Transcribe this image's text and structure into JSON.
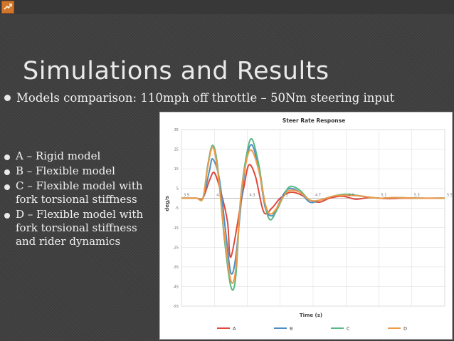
{
  "slide": {
    "title": "Simulations and Results",
    "subtitle": "Models comparison: 110mph off throttle – 50Nm steering input",
    "models": [
      {
        "text": "A – Rigid model"
      },
      {
        "text": "B – Flexible model"
      },
      {
        "text": "C – Flexible model with fork torsional stiffness"
      },
      {
        "text": "D – Flexible model with fork torsional stiffness and rider dynamics"
      }
    ]
  },
  "colors": {
    "A": "#e0473a",
    "B": "#4d8fc4",
    "C": "#58b782",
    "D": "#ef9a47"
  },
  "chart_data": {
    "type": "line",
    "title": "Steer Rate Response",
    "xlabel": "Time (s)",
    "ylabel": "deg/s",
    "xlim": [
      3.9,
      5.5
    ],
    "ylim": [
      -55,
      35
    ],
    "x_ticks": [
      "3.9",
      "4.1",
      "4.3",
      "4.5",
      "4.7",
      "4.9",
      "5.1",
      "5.3",
      "5.5"
    ],
    "y_ticks": [
      "35",
      "25",
      "15",
      "5",
      "-5",
      "-15",
      "-25",
      "-35",
      "-45",
      "-55"
    ],
    "grid": true,
    "legend_position": "bottom",
    "series": [
      {
        "name": "A",
        "x": [
          3.9,
          3.99,
          4.03,
          4.07,
          4.1,
          4.14,
          4.18,
          4.2,
          4.26,
          4.28,
          4.31,
          4.35,
          4.4,
          4.45,
          4.5,
          4.56,
          4.62,
          4.68,
          4.74,
          4.8,
          4.88,
          4.96,
          5.04,
          5.14,
          5.24,
          5.34,
          5.5
        ],
        "y": [
          0,
          0,
          0,
          9,
          13,
          3,
          -12,
          -30,
          -3,
          6,
          17,
          11,
          -7,
          -5,
          0,
          3,
          2,
          -1,
          -2,
          0,
          1,
          -0.5,
          0.3,
          -0.2,
          0,
          0,
          0
        ]
      },
      {
        "name": "B",
        "x": [
          3.9,
          3.99,
          4.03,
          4.07,
          4.09,
          4.13,
          4.17,
          4.2,
          4.23,
          4.27,
          4.3,
          4.33,
          4.37,
          4.41,
          4.45,
          4.48,
          4.52,
          4.56,
          4.62,
          4.68,
          4.74,
          4.82,
          4.9,
          5.0,
          5.1,
          5.2,
          5.35,
          5.5
        ],
        "y": [
          0,
          0,
          0,
          14,
          20,
          10,
          -18,
          -38,
          -30,
          4,
          22,
          27,
          15,
          -5,
          -9,
          -5,
          2,
          5,
          3,
          -2,
          -1,
          1,
          2,
          1,
          0,
          0.3,
          0,
          0
        ]
      },
      {
        "name": "C",
        "x": [
          3.9,
          3.99,
          4.03,
          4.06,
          4.09,
          4.12,
          4.16,
          4.2,
          4.23,
          4.26,
          4.3,
          4.33,
          4.37,
          4.41,
          4.44,
          4.48,
          4.52,
          4.56,
          4.62,
          4.68,
          4.74,
          4.82,
          4.9,
          5.0,
          5.1,
          5.2,
          5.35,
          5.5
        ],
        "y": [
          0,
          0,
          0,
          17,
          27,
          16,
          -20,
          -45,
          -40,
          0,
          24,
          30,
          17,
          -4,
          -11,
          -6,
          1,
          6,
          4,
          -1,
          -1,
          1,
          2,
          1,
          0,
          0.3,
          0,
          0
        ]
      },
      {
        "name": "D",
        "x": [
          3.9,
          3.99,
          4.03,
          4.06,
          4.09,
          4.12,
          4.16,
          4.2,
          4.23,
          4.26,
          4.3,
          4.33,
          4.37,
          4.41,
          4.44,
          4.48,
          4.52,
          4.56,
          4.62,
          4.68,
          4.74,
          4.82,
          4.9,
          5.0,
          5.1,
          5.2,
          5.35,
          5.5
        ],
        "y": [
          0,
          0,
          0,
          16,
          26,
          14,
          -18,
          -42,
          -36,
          0,
          21,
          24,
          14,
          -3,
          -8,
          -5,
          1,
          4,
          3,
          -1,
          -1,
          1,
          1.5,
          1,
          0,
          0.3,
          0,
          0
        ]
      }
    ]
  }
}
